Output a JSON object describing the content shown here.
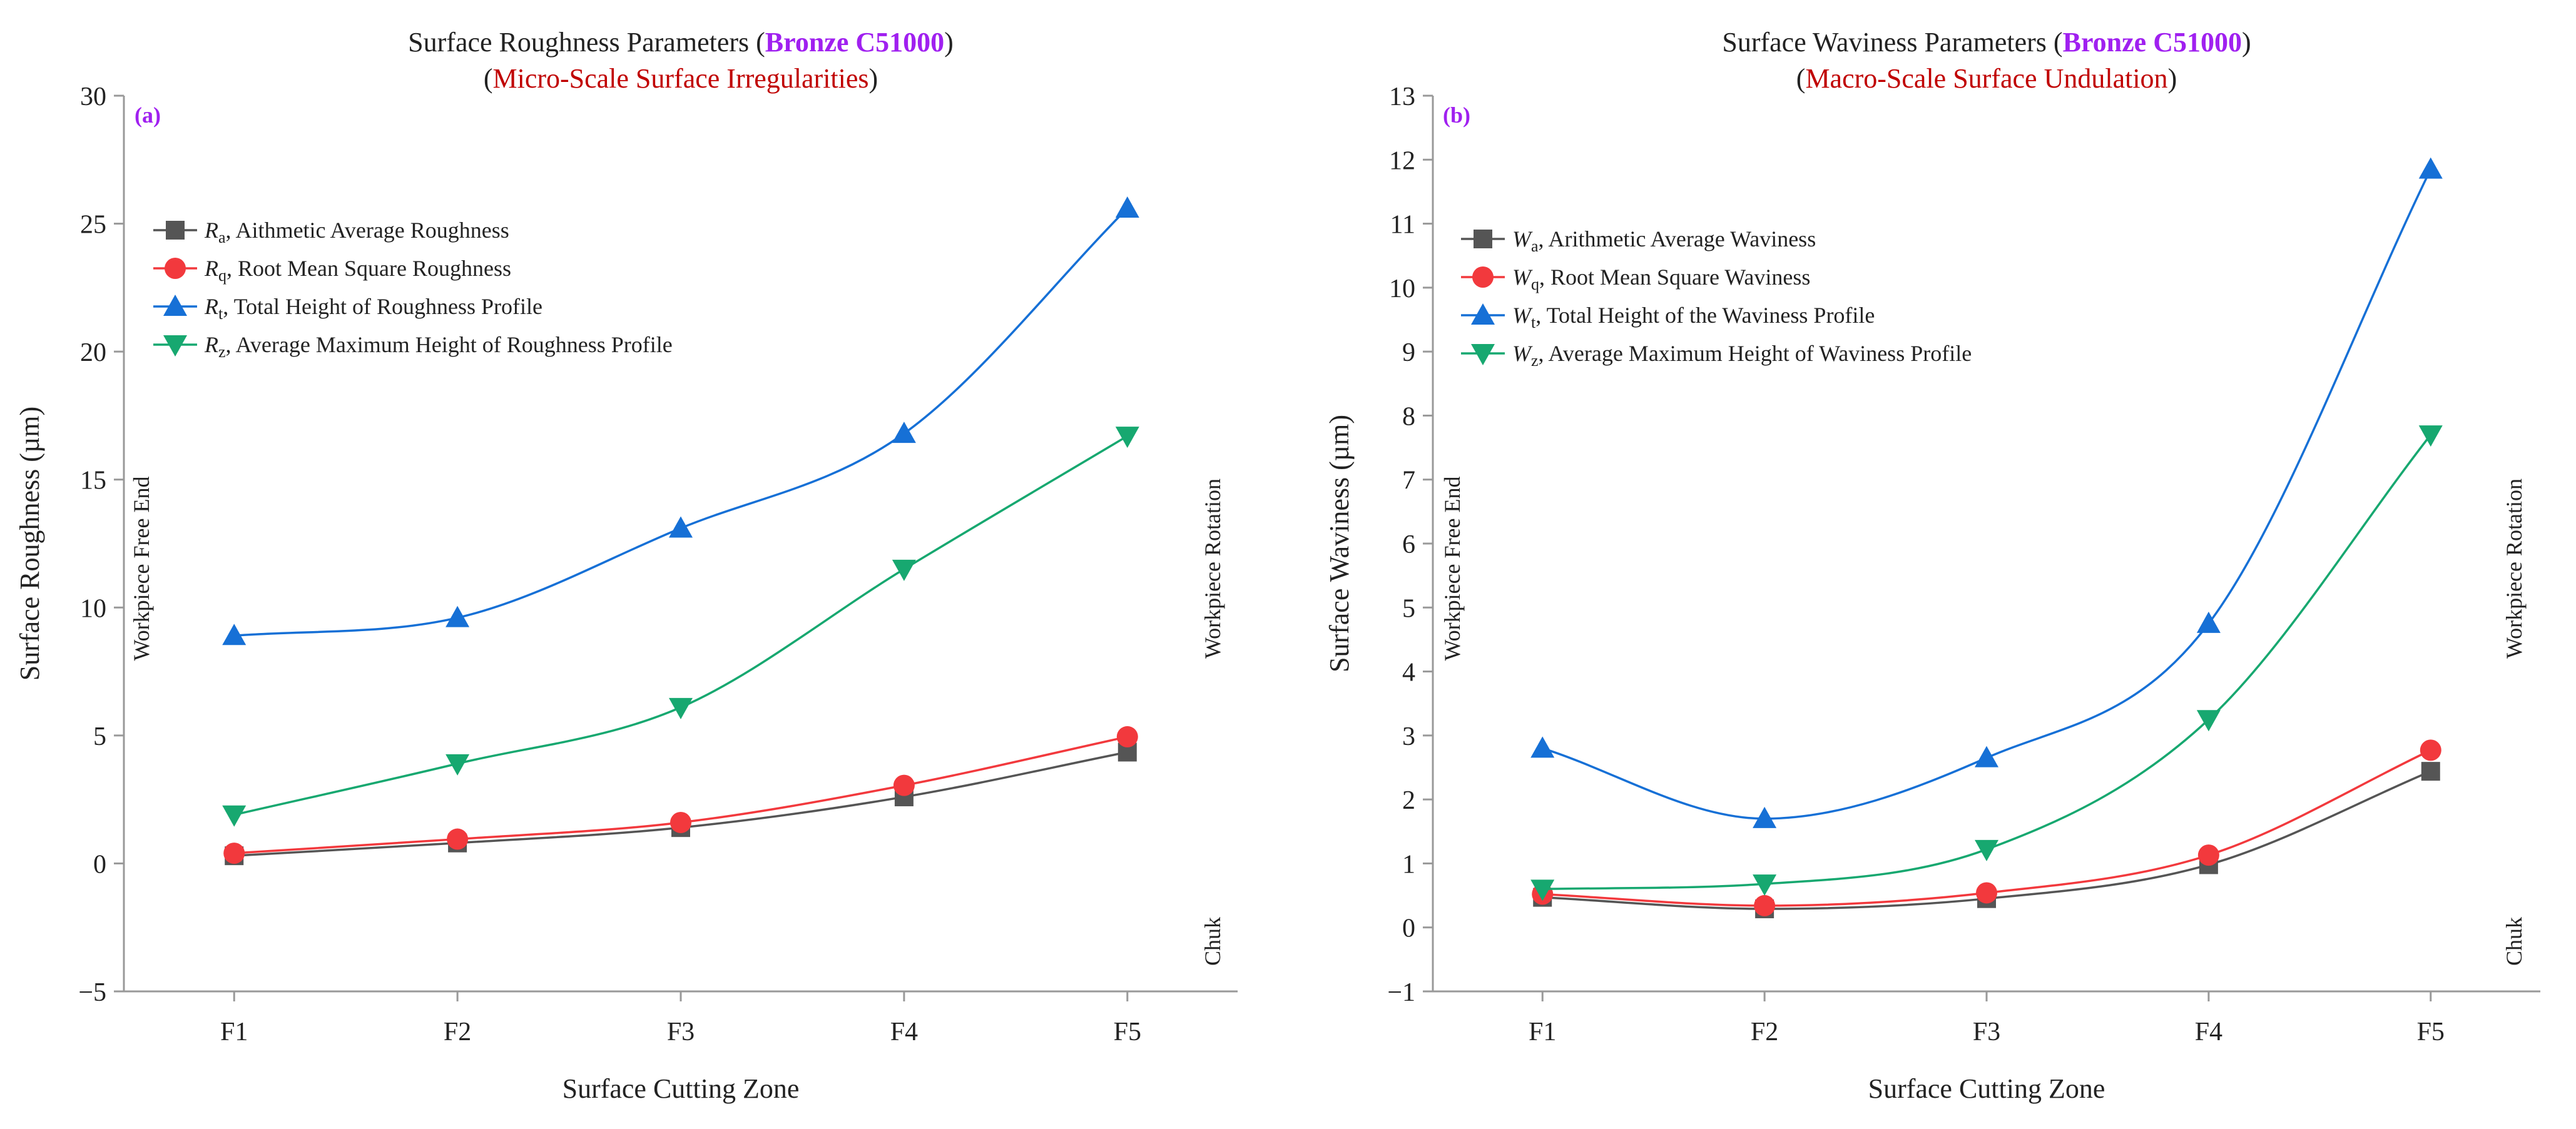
{
  "chart_data": [
    {
      "type": "line",
      "panel_tag": "(a)",
      "title": {
        "line1": {
          "prefix": "Surface Roughness Parameters (",
          "highlight": "Bronze C51000",
          "suffix": ")"
        },
        "line2": {
          "prefix": "(",
          "highlight": "Micro-Scale Surface Irregularities",
          "suffix": ")"
        }
      },
      "xlabel": "Surface Cutting Zone",
      "ylabel": "Surface Roughness (µm)",
      "categories": [
        "F1",
        "F2",
        "F3",
        "F4",
        "F5"
      ],
      "ylim": [
        -5,
        30
      ],
      "yticks": [
        -5,
        0,
        5,
        10,
        15,
        20,
        25,
        30
      ],
      "ytick_labels": [
        "−5",
        "0",
        "5",
        "10",
        "15",
        "20",
        "25",
        "30"
      ],
      "side_notes": {
        "left": "Workpiece Free End",
        "right": "Workpiece Rotation",
        "bottom_right": "Chuk"
      },
      "legend_position": "top-left",
      "series": [
        {
          "symbol": "R",
          "sub": "a",
          "name": ", Aithmetic Average Roughness",
          "marker": "square",
          "color": "#555555",
          "values": [
            0.3,
            0.8,
            1.4,
            2.6,
            4.35
          ]
        },
        {
          "symbol": "R",
          "sub": "q",
          "name": ", Root Mean Square Roughness",
          "marker": "circle",
          "color": "#f2393d",
          "values": [
            0.4,
            0.95,
            1.6,
            3.05,
            4.95
          ]
        },
        {
          "symbol": "R",
          "sub": "t",
          "name": ", Total Height of Roughness Profile",
          "marker": "triangle-up",
          "color": "#1670d6",
          "values": [
            8.9,
            9.6,
            13.1,
            16.8,
            25.6
          ]
        },
        {
          "symbol": "R",
          "sub": "z",
          "name": ", Average Maximum Height of Roughness Profile",
          "marker": "triangle-down",
          "color": "#17a870",
          "values": [
            1.9,
            3.9,
            6.1,
            11.5,
            16.7
          ]
        }
      ]
    },
    {
      "type": "line",
      "panel_tag": "(b)",
      "title": {
        "line1": {
          "prefix": "Surface Waviness Parameters (",
          "highlight": "Bronze C51000",
          "suffix": ")"
        },
        "line2": {
          "prefix": "(",
          "highlight": "Macro-Scale Surface Undulation",
          "suffix": ")"
        }
      },
      "xlabel": "Surface Cutting Zone",
      "ylabel": "Surface Waviness (µm)",
      "categories": [
        "F1",
        "F2",
        "F3",
        "F4",
        "F5"
      ],
      "ylim": [
        -1,
        13
      ],
      "yticks": [
        -1,
        0,
        1,
        2,
        3,
        4,
        5,
        6,
        7,
        8,
        9,
        10,
        11,
        12,
        13
      ],
      "ytick_labels": [
        "−1",
        "0",
        "1",
        "2",
        "3",
        "4",
        "5",
        "6",
        "7",
        "8",
        "9",
        "10",
        "11",
        "12",
        "13"
      ],
      "side_notes": {
        "left": "Workpiece Free End",
        "right": "Workpiece Rotation",
        "bottom_right": "Chuk"
      },
      "legend_position": "top-left",
      "series": [
        {
          "symbol": "W",
          "sub": "a",
          "name": ", Arithmetic Average Waviness",
          "marker": "square",
          "color": "#555555",
          "values": [
            0.47,
            0.29,
            0.45,
            0.98,
            2.44
          ]
        },
        {
          "symbol": "W",
          "sub": "q",
          "name": ", Root Mean Square Waviness",
          "marker": "circle",
          "color": "#f2393d",
          "values": [
            0.52,
            0.34,
            0.54,
            1.13,
            2.77
          ]
        },
        {
          "symbol": "W",
          "sub": "t",
          "name": ", Total Height of the Waviness Profile",
          "marker": "triangle-up",
          "color": "#1670d6",
          "values": [
            2.8,
            1.7,
            2.65,
            4.75,
            11.85
          ]
        },
        {
          "symbol": "W",
          "sub": "z",
          "name": ", Average Maximum Height of Waviness Profile",
          "marker": "triangle-down",
          "color": "#17a870",
          "values": [
            0.6,
            0.68,
            1.22,
            3.25,
            7.7
          ]
        }
      ]
    }
  ],
  "colors": {
    "material_highlight": "#a020f0",
    "subtitle_highlight": "#c00000",
    "axis": "#999999",
    "text": "#222222"
  }
}
